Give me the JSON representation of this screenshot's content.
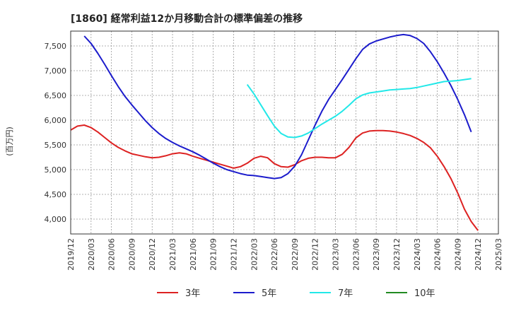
{
  "chart_data": {
    "type": "line",
    "title": "[1860]  経常利益12か月移動合計の標準偏差の推移",
    "ylabel": "(百万円)",
    "xlabel": "",
    "ylim": [
      3700,
      7800
    ],
    "yticks": [
      4000,
      4500,
      5000,
      5500,
      6000,
      6500,
      7000,
      7500
    ],
    "ytick_labels": [
      "4,000",
      "4,500",
      "5,000",
      "5,500",
      "6,000",
      "6,500",
      "7,000",
      "7,500"
    ],
    "xticks": [
      "2019/12",
      "2020/03",
      "2020/06",
      "2020/09",
      "2020/12",
      "2021/03",
      "2021/06",
      "2021/09",
      "2021/12",
      "2022/03",
      "2022/06",
      "2022/09",
      "2022/12",
      "2023/03",
      "2023/06",
      "2023/09",
      "2023/12",
      "2024/03",
      "2024/06",
      "2024/09",
      "2024/12",
      "2025/03"
    ],
    "grid": true,
    "legend_position": "bottom",
    "series": [
      {
        "name": "3年",
        "color": "#dd2222",
        "points": [
          [
            "2019/12",
            5800
          ],
          [
            "2020/01",
            5880
          ],
          [
            "2020/02",
            5900
          ],
          [
            "2020/03",
            5850
          ],
          [
            "2020/04",
            5760
          ],
          [
            "2020/05",
            5650
          ],
          [
            "2020/06",
            5540
          ],
          [
            "2020/07",
            5450
          ],
          [
            "2020/08",
            5380
          ],
          [
            "2020/09",
            5320
          ],
          [
            "2020/10",
            5290
          ],
          [
            "2020/11",
            5260
          ],
          [
            "2020/12",
            5240
          ],
          [
            "2021/01",
            5250
          ],
          [
            "2021/02",
            5280
          ],
          [
            "2021/03",
            5320
          ],
          [
            "2021/04",
            5340
          ],
          [
            "2021/05",
            5320
          ],
          [
            "2021/06",
            5270
          ],
          [
            "2021/07",
            5230
          ],
          [
            "2021/08",
            5190
          ],
          [
            "2021/09",
            5150
          ],
          [
            "2021/10",
            5110
          ],
          [
            "2021/11",
            5070
          ],
          [
            "2021/12",
            5030
          ],
          [
            "2022/01",
            5060
          ],
          [
            "2022/02",
            5130
          ],
          [
            "2022/03",
            5230
          ],
          [
            "2022/04",
            5270
          ],
          [
            "2022/05",
            5240
          ],
          [
            "2022/06",
            5120
          ],
          [
            "2022/07",
            5060
          ],
          [
            "2022/08",
            5050
          ],
          [
            "2022/09",
            5100
          ],
          [
            "2022/10",
            5180
          ],
          [
            "2022/11",
            5230
          ],
          [
            "2022/12",
            5250
          ],
          [
            "2023/01",
            5250
          ],
          [
            "2023/02",
            5240
          ],
          [
            "2023/03",
            5240
          ],
          [
            "2023/04",
            5310
          ],
          [
            "2023/05",
            5450
          ],
          [
            "2023/06",
            5640
          ],
          [
            "2023/07",
            5740
          ],
          [
            "2023/08",
            5780
          ],
          [
            "2023/09",
            5790
          ],
          [
            "2023/10",
            5790
          ],
          [
            "2023/11",
            5780
          ],
          [
            "2023/12",
            5760
          ],
          [
            "2024/01",
            5730
          ],
          [
            "2024/02",
            5690
          ],
          [
            "2024/03",
            5630
          ],
          [
            "2024/04",
            5550
          ],
          [
            "2024/05",
            5440
          ],
          [
            "2024/06",
            5270
          ],
          [
            "2024/07",
            5060
          ],
          [
            "2024/08",
            4820
          ],
          [
            "2024/09",
            4530
          ],
          [
            "2024/10",
            4200
          ],
          [
            "2024/11",
            3950
          ],
          [
            "2024/12",
            3770
          ]
        ]
      },
      {
        "name": "5年",
        "color": "#1c1ccc",
        "points": [
          [
            "2020/02",
            7700
          ],
          [
            "2020/03",
            7550
          ],
          [
            "2020/04",
            7350
          ],
          [
            "2020/05",
            7130
          ],
          [
            "2020/06",
            6900
          ],
          [
            "2020/07",
            6680
          ],
          [
            "2020/08",
            6480
          ],
          [
            "2020/09",
            6310
          ],
          [
            "2020/10",
            6150
          ],
          [
            "2020/11",
            5990
          ],
          [
            "2020/12",
            5850
          ],
          [
            "2021/01",
            5730
          ],
          [
            "2021/02",
            5630
          ],
          [
            "2021/03",
            5550
          ],
          [
            "2021/04",
            5480
          ],
          [
            "2021/05",
            5420
          ],
          [
            "2021/06",
            5360
          ],
          [
            "2021/07",
            5290
          ],
          [
            "2021/08",
            5210
          ],
          [
            "2021/09",
            5130
          ],
          [
            "2021/10",
            5060
          ],
          [
            "2021/11",
            5000
          ],
          [
            "2021/12",
            4960
          ],
          [
            "2022/01",
            4920
          ],
          [
            "2022/02",
            4890
          ],
          [
            "2022/03",
            4880
          ],
          [
            "2022/04",
            4860
          ],
          [
            "2022/05",
            4840
          ],
          [
            "2022/06",
            4820
          ],
          [
            "2022/07",
            4840
          ],
          [
            "2022/08",
            4920
          ],
          [
            "2022/09",
            5070
          ],
          [
            "2022/10",
            5300
          ],
          [
            "2022/11",
            5600
          ],
          [
            "2022/12",
            5900
          ],
          [
            "2023/01",
            6180
          ],
          [
            "2023/02",
            6420
          ],
          [
            "2023/03",
            6620
          ],
          [
            "2023/04",
            6820
          ],
          [
            "2023/05",
            7030
          ],
          [
            "2023/06",
            7240
          ],
          [
            "2023/07",
            7430
          ],
          [
            "2023/08",
            7540
          ],
          [
            "2023/09",
            7600
          ],
          [
            "2023/10",
            7640
          ],
          [
            "2023/11",
            7680
          ],
          [
            "2023/12",
            7710
          ],
          [
            "2024/01",
            7730
          ],
          [
            "2024/02",
            7710
          ],
          [
            "2024/03",
            7650
          ],
          [
            "2024/04",
            7550
          ],
          [
            "2024/05",
            7380
          ],
          [
            "2024/06",
            7180
          ],
          [
            "2024/07",
            6950
          ],
          [
            "2024/08",
            6700
          ],
          [
            "2024/09",
            6420
          ],
          [
            "2024/10",
            6110
          ],
          [
            "2024/11",
            5760
          ]
        ]
      },
      {
        "name": "7年",
        "color": "#22e8e8",
        "points": [
          [
            "2022/02",
            6720
          ],
          [
            "2022/03",
            6530
          ],
          [
            "2022/04",
            6310
          ],
          [
            "2022/05",
            6090
          ],
          [
            "2022/06",
            5880
          ],
          [
            "2022/07",
            5730
          ],
          [
            "2022/08",
            5660
          ],
          [
            "2022/09",
            5650
          ],
          [
            "2022/10",
            5680
          ],
          [
            "2022/11",
            5740
          ],
          [
            "2022/12",
            5830
          ],
          [
            "2023/01",
            5920
          ],
          [
            "2023/02",
            6000
          ],
          [
            "2023/03",
            6080
          ],
          [
            "2023/04",
            6180
          ],
          [
            "2023/05",
            6300
          ],
          [
            "2023/06",
            6430
          ],
          [
            "2023/07",
            6510
          ],
          [
            "2023/08",
            6550
          ],
          [
            "2023/09",
            6570
          ],
          [
            "2023/10",
            6590
          ],
          [
            "2023/11",
            6610
          ],
          [
            "2023/12",
            6620
          ],
          [
            "2024/01",
            6630
          ],
          [
            "2024/02",
            6640
          ],
          [
            "2024/03",
            6660
          ],
          [
            "2024/04",
            6690
          ],
          [
            "2024/05",
            6720
          ],
          [
            "2024/06",
            6750
          ],
          [
            "2024/07",
            6780
          ],
          [
            "2024/08",
            6790
          ],
          [
            "2024/09",
            6800
          ],
          [
            "2024/10",
            6820
          ],
          [
            "2024/11",
            6840
          ]
        ]
      },
      {
        "name": "10年",
        "color": "#228b22",
        "points": []
      }
    ]
  }
}
